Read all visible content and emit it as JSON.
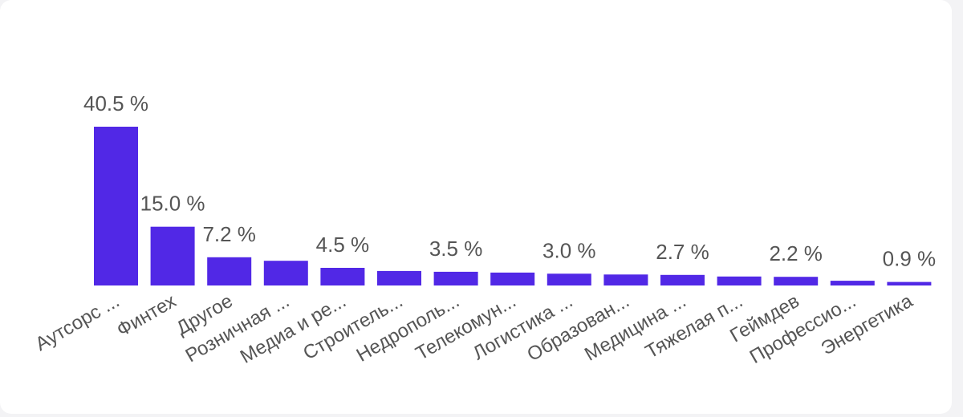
{
  "chart_data": {
    "type": "bar",
    "title": "",
    "xlabel": "",
    "ylabel": "",
    "ylim": [
      0,
      40.5
    ],
    "grid": false,
    "legend": "none",
    "bar_color": "#5128e6",
    "categories": [
      "Аутсорс ...",
      "Финтех",
      "Другое",
      "Розничная ...",
      "Медиа и ре...",
      "Строитель...",
      "Недрополь...",
      "Телекомун...",
      "Логистика ...",
      "Образован...",
      "Медицина ...",
      "Тяжелая п...",
      "Геймдев",
      "Профессио...",
      "Энергетика"
    ],
    "values": [
      40.5,
      15.0,
      7.2,
      6.3,
      4.5,
      3.7,
      3.5,
      3.3,
      3.0,
      2.8,
      2.7,
      2.3,
      2.2,
      1.2,
      0.9
    ],
    "data_labels": [
      "40.5 %",
      "15.0 %",
      "7.2 %",
      "",
      "4.5 %",
      "",
      "3.5 %",
      "",
      "3.0 %",
      "",
      "2.7 %",
      "",
      "2.2 %",
      "",
      "0.9 %"
    ]
  }
}
